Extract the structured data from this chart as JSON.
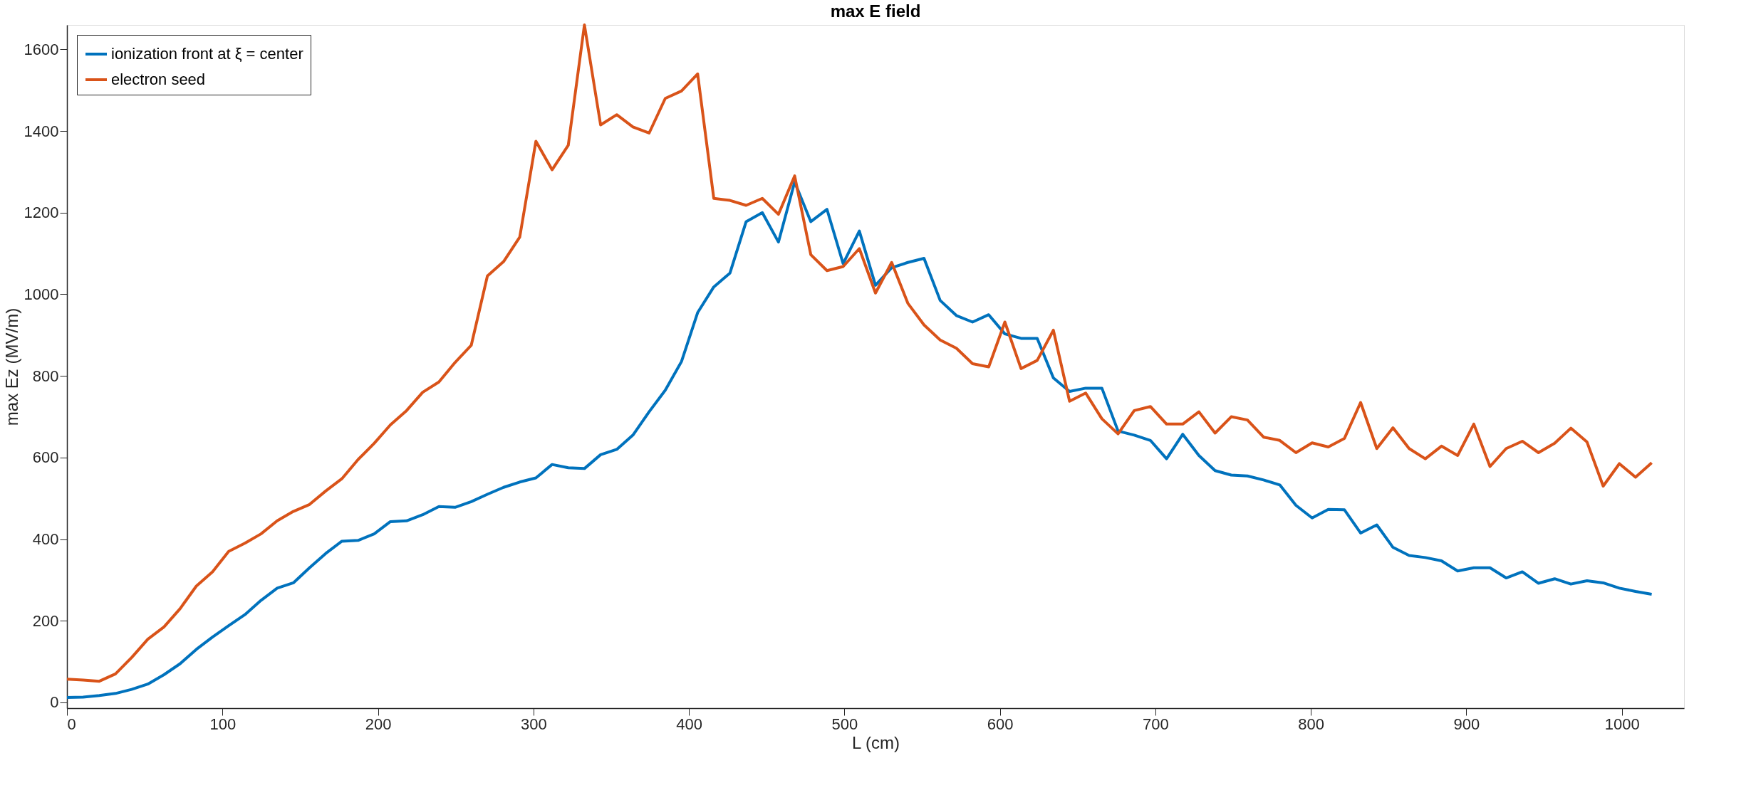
{
  "chart_data": {
    "type": "line",
    "title": "max E field",
    "xlabel": "L (cm)",
    "ylabel": "max Ez (MV/m)",
    "x": [
      0,
      10.4,
      20.8,
      31.2,
      41.6,
      52,
      62.4,
      72.8,
      83.2,
      93.6,
      104,
      114.4,
      124.8,
      135.2,
      145.6,
      156,
      166.4,
      176.8,
      187.2,
      197.6,
      208,
      218.4,
      228.8,
      239.2,
      249.6,
      260,
      270.4,
      280.8,
      291.2,
      301.6,
      312,
      322.4,
      332.8,
      343.2,
      353.6,
      364,
      374.4,
      384.8,
      395.2,
      405.6,
      416,
      426.4,
      436.8,
      447.2,
      457.6,
      468,
      478.4,
      488.8,
      499.2,
      509.6,
      520,
      530.4,
      540.8,
      551.2,
      561.6,
      572,
      582.4,
      592.8,
      603.2,
      613.6,
      624,
      634.4,
      644.8,
      655.2,
      665.6,
      676,
      686.4,
      696.8,
      707.2,
      717.6,
      728,
      738.4,
      748.8,
      759.2,
      769.6,
      780,
      790.4,
      800.8,
      811.2,
      821.6,
      832,
      842.4,
      852.8,
      863.2,
      873.6,
      884,
      894.4,
      904.8,
      915.2,
      925.6,
      936,
      946.4,
      956.8,
      967.2,
      977.6,
      988,
      998.4,
      1008.8,
      1019.2
    ],
    "series": [
      {
        "name": "ionization front at ξ = center",
        "color": "#0072bd",
        "values": [
          12,
          13,
          17,
          22,
          32,
          45,
          68,
          95,
          130,
          160,
          188,
          215,
          250,
          280,
          293,
          330,
          365,
          395,
          397,
          413,
          443,
          445,
          460,
          480,
          478,
          492,
          510,
          527,
          540,
          550,
          583,
          575,
          573,
          607,
          620,
          655,
          712,
          765,
          835,
          955,
          1018,
          1052,
          1178,
          1200,
          1128,
          1275,
          1178,
          1208,
          1075,
          1155,
          1022,
          1065,
          1078,
          1088,
          985,
          948,
          932,
          950,
          903,
          892,
          892,
          795,
          762,
          770,
          770,
          665,
          655,
          642,
          597,
          657,
          605,
          568,
          557,
          555,
          545,
          533,
          483,
          452,
          473,
          472,
          415,
          435,
          380,
          360,
          355,
          347,
          322,
          330,
          330,
          305,
          320,
          292,
          303,
          290,
          298,
          293,
          280,
          272,
          265
        ]
      },
      {
        "name": "electron seed",
        "color": "#d95319",
        "values": [
          57,
          55,
          52,
          70,
          110,
          155,
          185,
          230,
          285,
          320,
          370,
          390,
          413,
          445,
          468,
          485,
          518,
          548,
          595,
          635,
          680,
          715,
          760,
          785,
          833,
          875,
          1045,
          1080,
          1140,
          1375,
          1305,
          1365,
          1660,
          1415,
          1440,
          1410,
          1395,
          1480,
          1498,
          1540,
          1235,
          1230,
          1218,
          1235,
          1196,
          1290,
          1097,
          1058,
          1068,
          1112,
          1003,
          1078,
          978,
          925,
          888,
          868,
          830,
          822,
          932,
          818,
          838,
          912,
          738,
          758,
          695,
          658,
          715,
          725,
          682,
          682,
          712,
          660,
          700,
          692,
          650,
          642,
          612,
          636,
          626,
          647,
          735,
          622,
          673,
          622,
          597,
          628,
          605,
          682,
          578,
          622,
          640,
          612,
          635,
          672,
          638,
          530,
          585,
          552,
          587
        ]
      }
    ],
    "xlim": [
      0,
      1040
    ],
    "xticks": [
      0,
      100,
      200,
      300,
      400,
      500,
      600,
      700,
      800,
      900,
      1000
    ],
    "ylim": [
      -14,
      1660
    ],
    "yticks": [
      0,
      200,
      400,
      600,
      800,
      1000,
      1200,
      1400,
      1600
    ],
    "legend": "top left",
    "grid": false,
    "marker": "none",
    "line_style": "solid"
  }
}
